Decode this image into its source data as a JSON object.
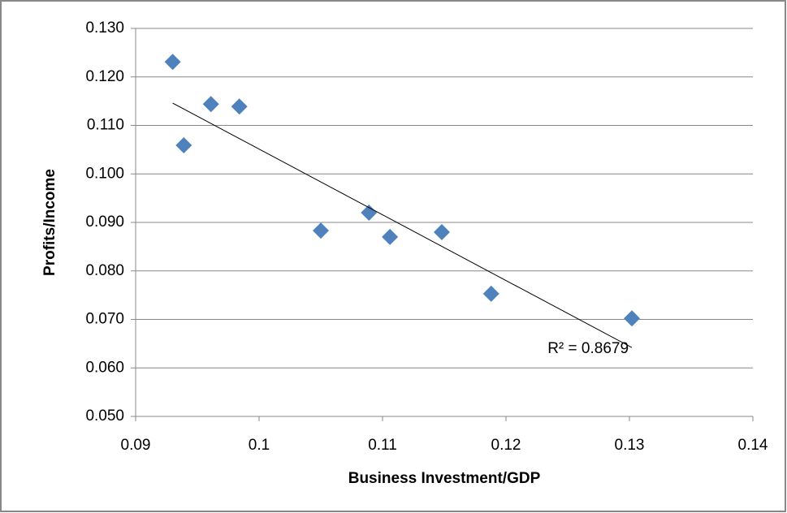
{
  "chart_data": {
    "type": "scatter",
    "x_label": "Business Investment/GDP",
    "y_label": "Profits/Income",
    "x": [
      0.093,
      0.0939,
      0.0961,
      0.0984,
      0.105,
      0.1089,
      0.1106,
      0.1148,
      0.1188,
      0.1302
    ],
    "series": [
      {
        "color": "#4f81bd",
        "values": [
          0.1231,
          0.1059,
          0.1144,
          0.1139,
          0.0883,
          0.092,
          0.087,
          0.088,
          0.0753,
          0.0702
        ]
      }
    ],
    "trendline": {
      "x": [
        0.093,
        0.1302
      ],
      "y": [
        0.1146,
        0.0642
      ],
      "color": "#000000",
      "label": "R² = 0.8679"
    },
    "xlim": [
      0.09,
      0.14
    ],
    "xticks": [
      0.09,
      0.1,
      0.11,
      0.12,
      0.13,
      0.14
    ],
    "ylim": [
      0.05,
      0.13
    ],
    "yticks": [
      {
        "value": 0.05,
        "label": "0.050"
      },
      {
        "value": 0.06,
        "label": "0.060"
      },
      {
        "value": 0.07,
        "label": "0.070"
      },
      {
        "value": 0.08,
        "label": "0.080"
      },
      {
        "value": 0.09,
        "label": "0.090"
      },
      {
        "value": 0.1,
        "label": "0.100"
      },
      {
        "value": 0.11,
        "label": "0.110"
      },
      {
        "value": 0.12,
        "label": "0.120"
      },
      {
        "value": 0.13,
        "label": "0.130"
      }
    ],
    "grid": true
  }
}
